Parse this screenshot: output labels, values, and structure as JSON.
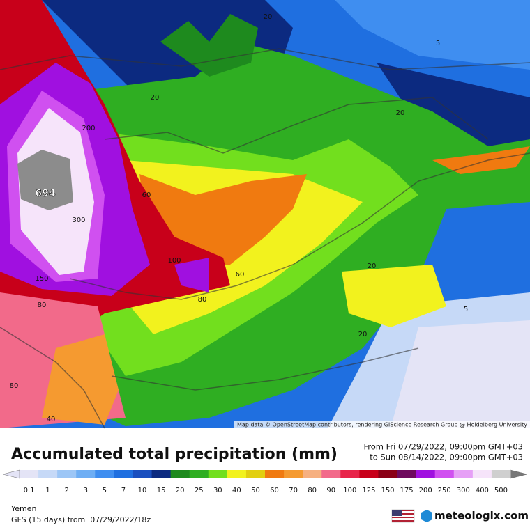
{
  "map": {
    "contour_labels": [
      "20",
      "5",
      "20",
      "20",
      "200",
      "694",
      "60",
      "300",
      "100",
      "150",
      "60",
      "80",
      "20",
      "80",
      "20",
      "5",
      "20",
      "80",
      "40"
    ],
    "attribution": "Map data © OpenStreetMap contributors, rendering GIScience Research Group @ Heidelberg University"
  },
  "title": "Accumulated total precipitation (mm)",
  "period": {
    "from": "From Fri 07/29/2022, 09:00pm GMT+03",
    "to": "to Sun 08/14/2022, 09:00pm GMT+03"
  },
  "legend": {
    "levels": [
      0.1,
      1,
      2,
      3,
      5,
      7,
      10,
      15,
      20,
      25,
      30,
      40,
      50,
      60,
      70,
      80,
      90,
      100,
      125,
      150,
      175,
      200,
      250,
      300,
      400,
      500
    ],
    "colors": [
      "#e4e4f6",
      "#c6d9f7",
      "#9cc6f6",
      "#6eaef4",
      "#3f8ef0",
      "#1f6fe0",
      "#1a4fbf",
      "#0c2a80",
      "#1e8a1e",
      "#2fae22",
      "#72df1e",
      "#f2f21e",
      "#e2cf10",
      "#f07a10",
      "#f59a30",
      "#f6b080",
      "#f26a8a",
      "#e8254a",
      "#c8001a",
      "#8a0016",
      "#6e0a5e",
      "#a010e0",
      "#d050f0",
      "#e6a0f6",
      "#f6e4fa",
      "#cfcfcf"
    ]
  },
  "footer": {
    "region": "Yemen",
    "model": "GFS (15 days) from  07/29/2022/18z",
    "brand": "meteologix.com"
  }
}
